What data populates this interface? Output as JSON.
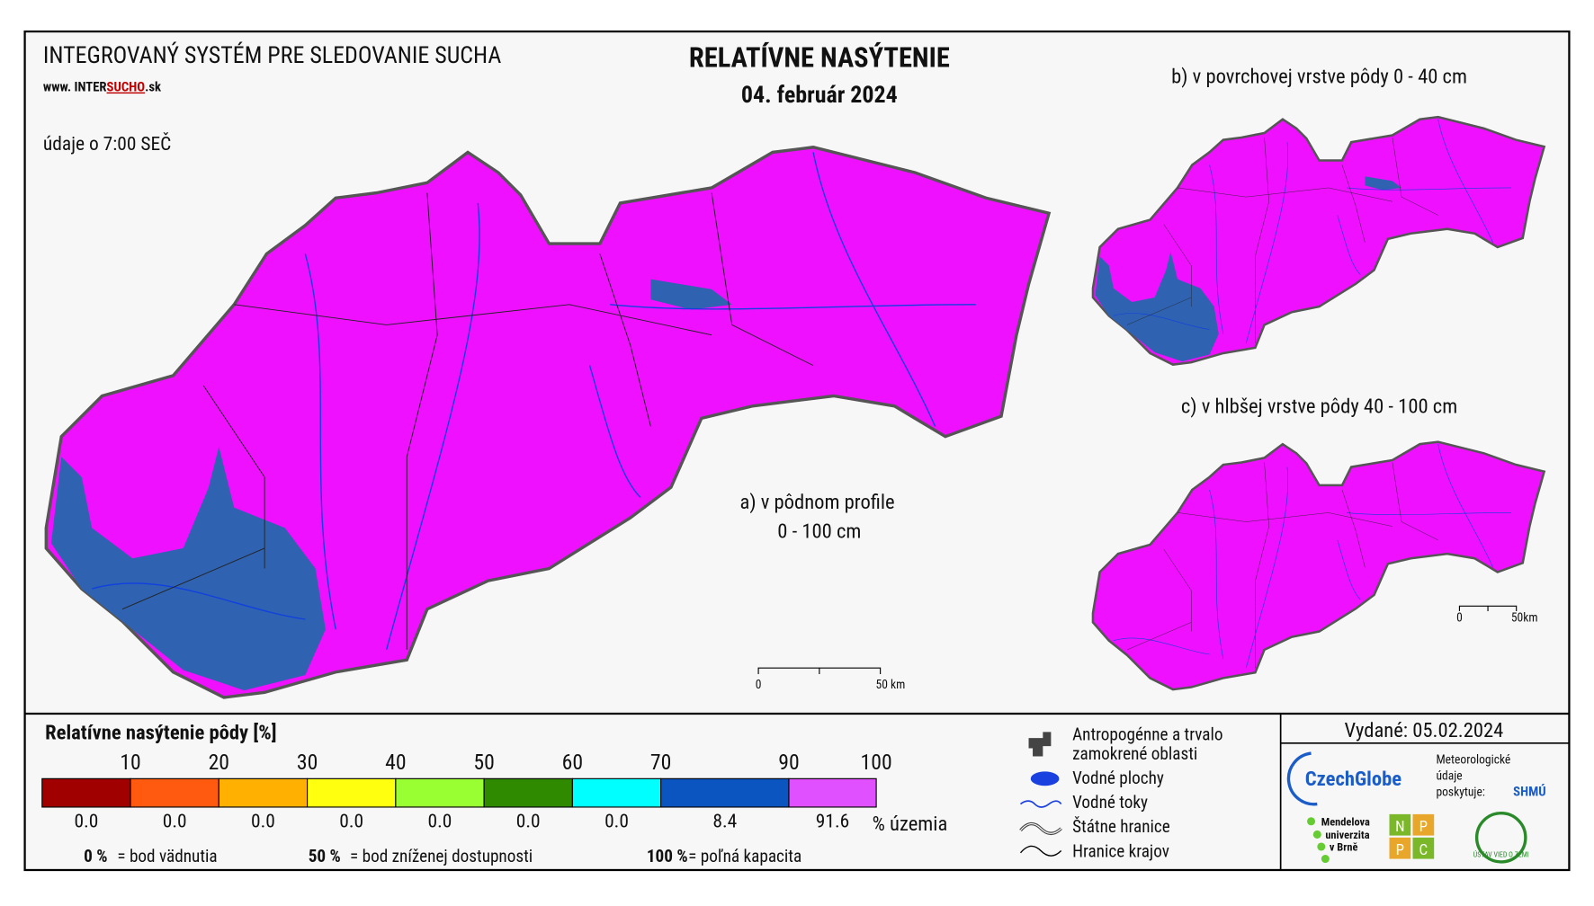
{
  "header": {
    "system": "INTEGROVANÝ SYSTÉM PRE SLEDOVANIE SUCHA",
    "web_prefix": "www. INTER",
    "web_brand": "SUCHO",
    "web_suffix": ".sk",
    "title": "RELATÍVNE NASÝTENIE",
    "date": "04. február 2024",
    "data_time": "údaje o 7:00 SEČ"
  },
  "maps": {
    "a_label_1": "a) v pôdnom profile",
    "a_label_2": "0 - 100 cm",
    "b_label": "b) v povrchovej vrstve pôdy 0 - 40 cm",
    "c_label": "c) v hlbšej vrstve pôdy 40 - 100 cm",
    "scale_zero": "0",
    "scale_main": "50 km",
    "scale_small": "50km"
  },
  "legend": {
    "title": "Relatívne nasýtenie pôdy [%]",
    "breaks": [
      "10",
      "20",
      "30",
      "40",
      "50",
      "60",
      "70",
      "90",
      "100"
    ],
    "classes": [
      {
        "color": "#a00000",
        "share": "0.0"
      },
      {
        "color": "#ff5a10",
        "share": "0.0"
      },
      {
        "color": "#ffb000",
        "share": "0.0"
      },
      {
        "color": "#ffff10",
        "share": "0.0"
      },
      {
        "color": "#99ff33",
        "share": "0.0"
      },
      {
        "color": "#2f8a00",
        "share": "0.0"
      },
      {
        "color": "#00ffff",
        "share": "0.0"
      },
      {
        "color": "#0a55c0",
        "share": "8.4"
      },
      {
        "color": "#e050ff",
        "share": "91.6"
      }
    ],
    "unit": "% územia",
    "notes": [
      {
        "key": "0 %",
        "text": "= bod vädnutia"
      },
      {
        "key": "50 %",
        "text": "= bod zníženej dostupnosti"
      },
      {
        "key": "100 %",
        "text": "= poľná kapacita"
      }
    ],
    "symbols": [
      "Antropogénne a trvalo",
      "zamokrené oblasti",
      "Vodné plochy",
      "Vodné toky",
      "Štátne hranice",
      "Hranice krajov"
    ]
  },
  "footer": {
    "issued": "Vydané: 05.02.2024",
    "czechglobe": "CzechGlobe",
    "meteo_1": "Meteorologické",
    "meteo_2": "údaje",
    "meteo_3": "poskytuje:",
    "shmu": "SHMÚ",
    "mendel_1": "Mendelova",
    "mendel_2": "univerzita",
    "mendel_3": "v Brně",
    "nppc": [
      "N",
      "P",
      "P",
      "C"
    ],
    "uvz": "ÚSTAV VIED O ZEMI"
  }
}
